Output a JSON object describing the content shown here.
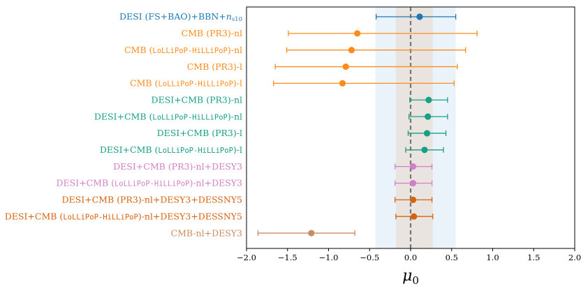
{
  "chart_data": {
    "type": "errorbar",
    "xlabel": "μ0",
    "xlabel_main": "μ",
    "xlabel_sub": "0",
    "xlim": [
      -2.0,
      2.0
    ],
    "xticks": [
      -2.0,
      -1.5,
      -1.0,
      -0.5,
      0.0,
      0.5,
      1.0,
      1.5,
      2.0
    ],
    "xtick_labels": [
      "−2.0",
      "−1.5",
      "−1.0",
      "−0.5",
      "0.0",
      "0.5",
      "1.0",
      "1.5",
      "2.0"
    ],
    "grid": false,
    "reference_line": 0.0,
    "bands": [
      {
        "x": [
          -0.43,
          0.55
        ],
        "color": "#dbe9f6"
      },
      {
        "x": [
          -0.18,
          0.27
        ],
        "color": "#e9e2dc"
      }
    ],
    "rows": [
      {
        "label_parts": [
          {
            "t": "DESI (FS+BAO)+BBN+",
            "s": "n"
          },
          {
            "t": "n",
            "s": "it"
          },
          {
            "t": "s10",
            "s": "sub"
          }
        ],
        "value": 0.11,
        "low": -0.42,
        "high": 0.55,
        "color": "#1f77b4"
      },
      {
        "label_parts": [
          {
            "t": "CMB (PR3)-nl",
            "s": "n"
          }
        ],
        "value": -0.65,
        "low": -1.49,
        "high": 0.81,
        "color": "#ff8c1a"
      },
      {
        "label_parts": [
          {
            "t": "CMB (",
            "s": "n"
          },
          {
            "t": "LoLLiPoP-HiLLiPoP",
            "s": "mono"
          },
          {
            "t": ")-nl",
            "s": "n"
          }
        ],
        "value": -0.72,
        "low": -1.51,
        "high": 0.67,
        "color": "#ff8c1a"
      },
      {
        "label_parts": [
          {
            "t": "CMB (PR3)-l",
            "s": "n"
          }
        ],
        "value": -0.79,
        "low": -1.65,
        "high": 0.57,
        "color": "#ff8c1a"
      },
      {
        "label_parts": [
          {
            "t": "CMB (",
            "s": "n"
          },
          {
            "t": "LoLLiPoP-HiLLiPoP",
            "s": "mono"
          },
          {
            "t": ")-l",
            "s": "n"
          }
        ],
        "value": -0.83,
        "low": -1.67,
        "high": 0.53,
        "color": "#ff8c1a"
      },
      {
        "label_parts": [
          {
            "t": "DESI+CMB (PR3)-nl",
            "s": "n"
          }
        ],
        "value": 0.22,
        "low": -0.01,
        "high": 0.45,
        "color": "#16a085"
      },
      {
        "label_parts": [
          {
            "t": "DESI+CMB (",
            "s": "n"
          },
          {
            "t": "LoLLiPoP-HiLLiPoP",
            "s": "mono"
          },
          {
            "t": ")-nl",
            "s": "n"
          }
        ],
        "value": 0.21,
        "low": -0.02,
        "high": 0.45,
        "color": "#16a085"
      },
      {
        "label_parts": [
          {
            "t": "DESI+CMB (PR3)-l",
            "s": "n"
          }
        ],
        "value": 0.2,
        "low": -0.03,
        "high": 0.43,
        "color": "#16a085"
      },
      {
        "label_parts": [
          {
            "t": "DESI+CMB (",
            "s": "n"
          },
          {
            "t": "LoLLiPoP-HiLLiPoP",
            "s": "mono"
          },
          {
            "t": ")-l",
            "s": "n"
          }
        ],
        "value": 0.17,
        "low": -0.06,
        "high": 0.4,
        "color": "#16a085"
      },
      {
        "label_parts": [
          {
            "t": "DESI+CMB (PR3)-nl+DESY3",
            "s": "n"
          }
        ],
        "value": 0.03,
        "low": -0.19,
        "high": 0.26,
        "color": "#d17fc7"
      },
      {
        "label_parts": [
          {
            "t": "DESI+CMB (",
            "s": "n"
          },
          {
            "t": "LoLLiPoP-HiLLiPoP",
            "s": "mono"
          },
          {
            "t": ")-nl+DESY3",
            "s": "n"
          }
        ],
        "value": 0.03,
        "low": -0.19,
        "high": 0.26,
        "color": "#d17fc7"
      },
      {
        "label_parts": [
          {
            "t": "DESI+CMB (PR3)-nl+DESY3+DESSNY5",
            "s": "n"
          }
        ],
        "value": 0.03,
        "low": -0.19,
        "high": 0.26,
        "color": "#d6620f"
      },
      {
        "label_parts": [
          {
            "t": "DESI+CMB (",
            "s": "n"
          },
          {
            "t": "LoLLiPoP-HiLLiPoP",
            "s": "mono"
          },
          {
            "t": ")-nl+DESY3+DESSNY5",
            "s": "n"
          }
        ],
        "value": 0.04,
        "low": -0.18,
        "high": 0.27,
        "color": "#d6620f"
      },
      {
        "label_parts": [
          {
            "t": "CMB-nl+DESY3",
            "s": "n"
          }
        ],
        "value": -1.21,
        "low": -1.86,
        "high": -0.68,
        "color": "#c98c62"
      }
    ]
  }
}
